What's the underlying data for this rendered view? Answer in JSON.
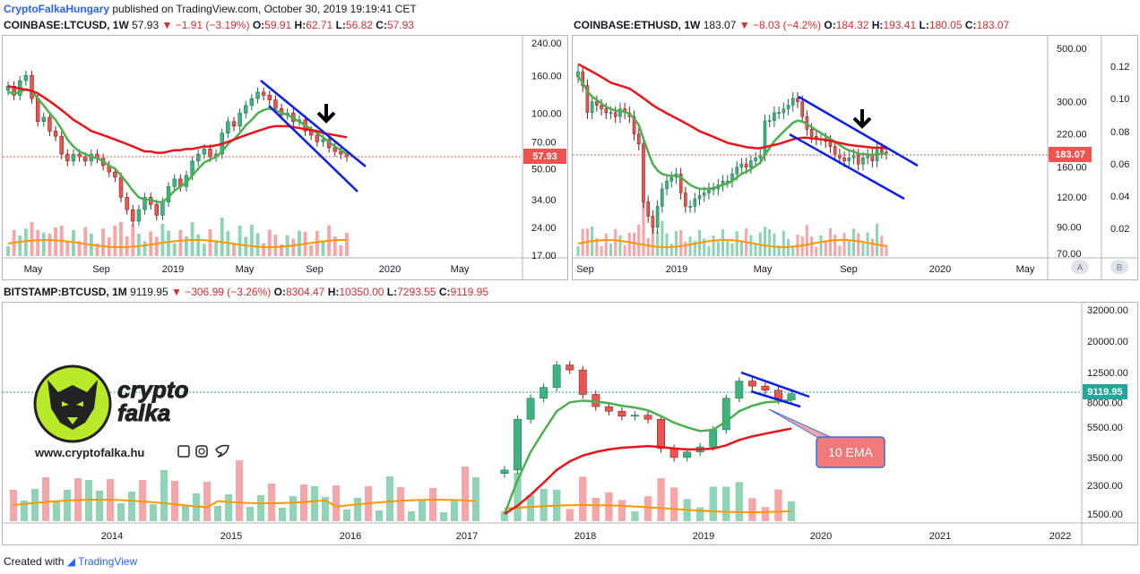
{
  "header": {
    "author": "CryptoFalkaHungary",
    "published_text": "published on TradingView.com, October 30, 2019 19:19:41 CET"
  },
  "footer": {
    "created_with": "Created with",
    "brand": "TradingView"
  },
  "colors": {
    "up": "#26a69a",
    "green_candle": "#3fb37f",
    "down": "#ef5350",
    "ema_fast": "#4caf50",
    "ema_slow": "#e8141b",
    "volume_ma": "#ff9800",
    "channel": "#0a1ee6",
    "price_tag": "#ef5350"
  },
  "panels": {
    "ltc": {
      "symbol": "COINBASE:LTCUSD, 1W",
      "last": "57.93",
      "change": "−1.91 (−3.19%)",
      "ohlc": {
        "O": "59.91",
        "H": "62.71",
        "L": "56.82",
        "C": "57.93"
      },
      "price_labels": [
        "240.00",
        "160.00",
        "100.00",
        "70.00",
        "50.00",
        "34.00",
        "24.00",
        "17.00"
      ],
      "price_tag": "57.93",
      "time_labels": [
        "May",
        "Sep",
        "2019",
        "May",
        "Sep",
        "2020",
        "May"
      ]
    },
    "eth": {
      "symbol": "COINBASE:ETHUSD, 1W",
      "last": "183.07",
      "change": "−8.03 (−4.2%)",
      "ohlc": {
        "O": "184.32",
        "H": "193.41",
        "L": "180.05",
        "C": "183.07"
      },
      "price_labels": [
        "500.00",
        "300.00",
        "220.00",
        "160.00",
        "120.00",
        "90.00",
        "70.00"
      ],
      "ratio_labels": [
        "0.12",
        "0.10",
        "0.08",
        "0.06",
        "0.04",
        "0.02"
      ],
      "price_tag": "183.07",
      "time_labels": [
        "Sep",
        "2019",
        "May",
        "Sep",
        "2020",
        "May"
      ],
      "scale_buttons": [
        "A",
        "B"
      ]
    },
    "btc": {
      "symbol": "BITSTAMP:BTCUSD, 1M",
      "last": "9119.95",
      "change": "−306.99 (−3.26%)",
      "ohlc": {
        "O": "8304.47",
        "H": "10350.00",
        "L": "7293.55",
        "C": "9119.95"
      },
      "price_labels": [
        "32000.00",
        "20000.00",
        "12500.00",
        "8000.00",
        "5500.00",
        "3500.00",
        "2300.00",
        "1500.00"
      ],
      "price_tag": "9119.95",
      "time_labels": [
        "2014",
        "2015",
        "2016",
        "2017",
        "2018",
        "2019",
        "2020",
        "2021",
        "2022"
      ],
      "annotation": "10 EMA"
    }
  },
  "logo": {
    "line1": "crypto",
    "line2": "falka",
    "website": "www.cryptofalka.hu"
  },
  "chart_data": [
    {
      "type": "candlestick",
      "title": "COINBASE:LTCUSD, 1W",
      "log_scale": true,
      "ylim": [
        17,
        240
      ],
      "series": [
        {
          "name": "price",
          "values": [
            140,
            125,
            150,
            160,
            120,
            90,
            95,
            80,
            75,
            60,
            55,
            60,
            58,
            55,
            60,
            57,
            52,
            48,
            45,
            35,
            30,
            26,
            30,
            35,
            32,
            28,
            33,
            40,
            44,
            40,
            46,
            55,
            60,
            64,
            58,
            60,
            78,
            90,
            85,
            100,
            110,
            120,
            130,
            125,
            118,
            106,
            98,
            100,
            90,
            92,
            80,
            76,
            70,
            72,
            65,
            62,
            60,
            58
          ]
        },
        {
          "name": "EMA fast",
          "values": [
            130,
            128,
            130,
            135,
            132,
            120,
            110,
            100,
            92,
            82,
            72,
            66,
            62,
            60,
            58,
            57,
            55,
            52,
            50,
            46,
            42,
            38,
            35,
            34,
            34,
            33,
            33,
            35,
            38,
            40,
            42,
            46,
            50,
            54,
            56,
            58,
            62,
            68,
            72,
            78,
            86,
            92,
            100,
            104,
            106,
            104,
            100,
            98,
            94,
            90,
            86,
            82,
            78,
            74,
            70,
            66,
            63,
            60
          ]
        },
        {
          "name": "EMA slow",
          "values": [
            140,
            138,
            136,
            134,
            132,
            128,
            122,
            116,
            110,
            104,
            98,
            92,
            88,
            84,
            80,
            78,
            76,
            74,
            72,
            70,
            68,
            66,
            64,
            62,
            62,
            61,
            61,
            62,
            63,
            63,
            64,
            64,
            65,
            66,
            66,
            67,
            68,
            70,
            72,
            74,
            76,
            78,
            80,
            82,
            84,
            85,
            85,
            85,
            84,
            83,
            82,
            81,
            80,
            78,
            77,
            76,
            75,
            74
          ]
        }
      ],
      "x_labels": [
        "May",
        "Sep",
        "2019",
        "May",
        "Sep",
        "2020",
        "May"
      ],
      "last_price": 57.93
    },
    {
      "type": "candlestick",
      "title": "COINBASE:ETHUSD, 1W",
      "log_scale": true,
      "ylim": [
        70,
        500
      ],
      "series": [
        {
          "name": "price",
          "values": [
            400,
            350,
            270,
            300,
            290,
            280,
            270,
            270,
            260,
            280,
            270,
            260,
            220,
            200,
            115,
            100,
            90,
            110,
            130,
            140,
            145,
            150,
            125,
            110,
            110,
            118,
            122,
            125,
            130,
            130,
            135,
            140,
            140,
            150,
            160,
            165,
            160,
            170,
            175,
            180,
            250,
            250,
            270,
            270,
            280,
            290,
            310,
            300,
            260,
            230,
            215,
            210,
            210,
            205,
            195,
            180,
            175,
            170,
            175,
            180,
            165,
            175,
            180,
            170,
            190,
            185,
            183
          ]
        },
        {
          "name": "EMA fast",
          "values": [
            380,
            360,
            330,
            315,
            305,
            295,
            285,
            280,
            275,
            275,
            272,
            268,
            255,
            240,
            210,
            185,
            165,
            155,
            150,
            148,
            147,
            148,
            145,
            140,
            135,
            132,
            130,
            130,
            130,
            131,
            133,
            135,
            137,
            140,
            145,
            150,
            153,
            157,
            162,
            167,
            180,
            192,
            205,
            215,
            225,
            235,
            245,
            250,
            248,
            242,
            235,
            228,
            222,
            216,
            210,
            204,
            198,
            192,
            188,
            186,
            182,
            181,
            181,
            180,
            181,
            182,
            182
          ]
        },
        {
          "name": "EMA slow",
          "values": [
            430,
            420,
            410,
            400,
            390,
            380,
            370,
            360,
            355,
            350,
            345,
            340,
            330,
            320,
            310,
            300,
            290,
            282,
            275,
            268,
            262,
            256,
            250,
            244,
            238,
            232,
            226,
            222,
            218,
            214,
            210,
            206,
            202,
            200,
            198,
            196,
            194,
            193,
            192,
            192,
            194,
            196,
            198,
            200,
            203,
            206,
            209,
            211,
            212,
            212,
            211,
            210,
            209,
            208,
            206,
            204,
            202,
            200,
            198,
            197,
            196,
            195,
            194,
            193,
            193,
            193,
            192
          ]
        }
      ],
      "x_labels": [
        "Sep",
        "2019",
        "May",
        "Sep",
        "2020",
        "May"
      ],
      "last_price": 183.07
    },
    {
      "type": "candlestick",
      "title": "BITSTAMP:BTCUSD, 1M",
      "log_scale": true,
      "ylim": [
        1500,
        32000
      ],
      "series": [
        {
          "name": "price",
          "values": [
            2900,
            6200,
            8500,
            10000,
            14000,
            13000,
            9000,
            7500,
            7000,
            6500,
            6600,
            6200,
            4000,
            3500,
            3800,
            4100,
            5300,
            8500,
            11000,
            10200,
            9600,
            8300,
            9100
          ]
        },
        {
          "name": "10 EMA",
          "values": [
            1500,
            2500,
            3800,
            5200,
            7000,
            8000,
            8200,
            8100,
            7900,
            7600,
            7400,
            7100,
            6500,
            5900,
            5500,
            5200,
            5300,
            6000,
            7000,
            7600,
            8000,
            8100,
            8300
          ]
        },
        {
          "name": "EMA slow",
          "values": [
            1500,
            1700,
            2000,
            2400,
            2900,
            3300,
            3600,
            3800,
            3950,
            4050,
            4100,
            4150,
            4100,
            4000,
            3950,
            3950,
            4000,
            4200,
            4550,
            4800,
            5000,
            5200,
            5400
          ]
        }
      ],
      "x_labels": [
        "2014",
        "2015",
        "2016",
        "2017",
        "2018",
        "2019",
        "2020",
        "2021",
        "2022"
      ],
      "last_price": 9119.95
    }
  ]
}
